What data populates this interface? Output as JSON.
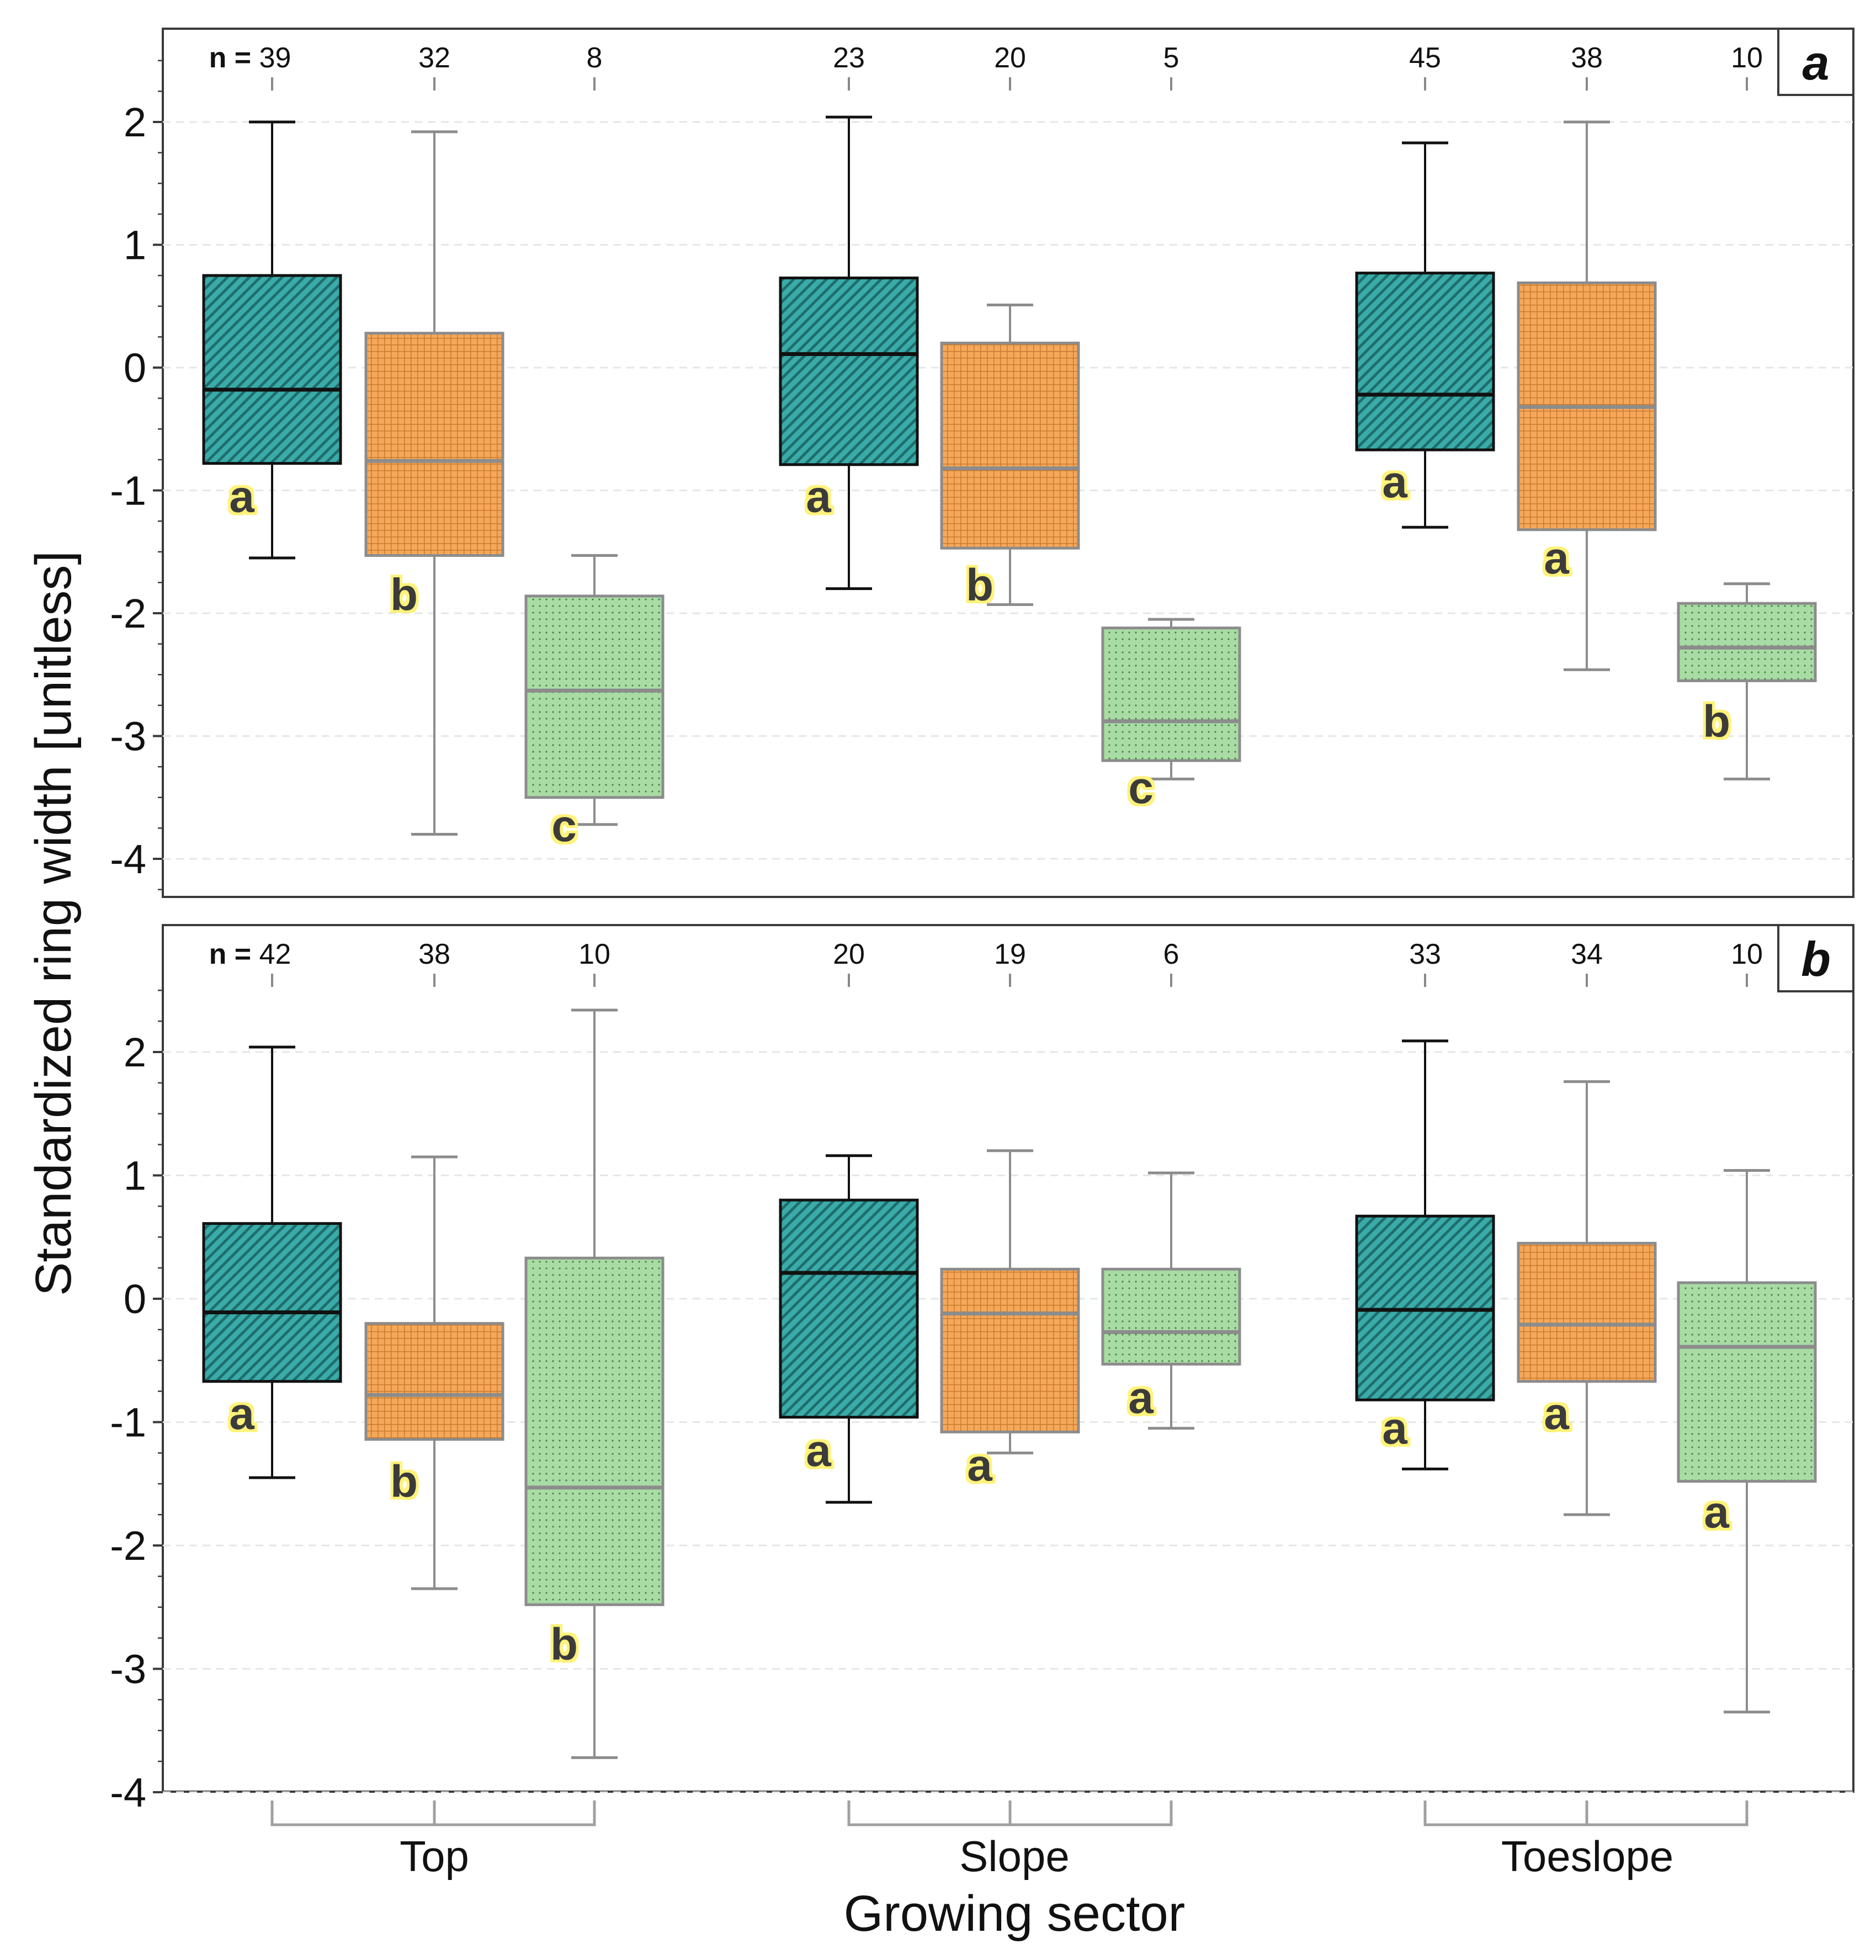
{
  "figure": {
    "ylabel": "Standardized ring width [unitless]",
    "xlabel": "Growing sector",
    "groups": [
      "Top",
      "Slope",
      "Toeslope"
    ],
    "colors": {
      "teal": "#3aaba8",
      "orange": "#f6a85a",
      "green": "#a8dca4",
      "dark_stroke": "#111111",
      "grey_stroke": "#8c8c8c",
      "letter_fill": "#3a3a3a",
      "letter_halo": "#fff27a"
    }
  },
  "chart_data": [
    {
      "type": "box",
      "panel_label": "a",
      "ylim": [
        -4.3,
        2.8
      ],
      "yticks": [
        "2",
        "1",
        "0",
        "-1",
        "-2",
        "-3",
        "-4"
      ],
      "n_prefix": "n =",
      "boxes": [
        {
          "group": "Top",
          "series": "teal",
          "n": "39",
          "whisker_low": -1.55,
          "q1": -0.78,
          "median": -0.18,
          "q3": 0.75,
          "whisker_high": 2.0,
          "letter": "a",
          "letter_y": -1.05
        },
        {
          "group": "Top",
          "series": "orange",
          "n": "32",
          "whisker_low": -3.8,
          "q1": -1.53,
          "median": -0.76,
          "q3": 0.28,
          "whisker_high": 1.92,
          "letter": "b",
          "letter_y": -1.85
        },
        {
          "group": "Top",
          "series": "green",
          "n": "8",
          "whisker_low": -3.72,
          "q1": -3.5,
          "median": -2.63,
          "q3": -1.86,
          "whisker_high": -1.53,
          "letter": "c",
          "letter_y": -3.73
        },
        {
          "group": "Slope",
          "series": "teal",
          "n": "23",
          "whisker_low": -1.8,
          "q1": -0.79,
          "median": 0.11,
          "q3": 0.73,
          "whisker_high": 2.04,
          "letter": "a",
          "letter_y": -1.05
        },
        {
          "group": "Slope",
          "series": "orange",
          "n": "20",
          "whisker_low": -1.93,
          "q1": -1.47,
          "median": -0.82,
          "q3": 0.2,
          "whisker_high": 0.51,
          "letter": "b",
          "letter_y": -1.77
        },
        {
          "group": "Slope",
          "series": "green",
          "n": "5",
          "whisker_low": -3.35,
          "q1": -3.2,
          "median": -2.88,
          "q3": -2.12,
          "whisker_high": -2.05,
          "letter": "c",
          "letter_y": -3.42
        },
        {
          "group": "Toeslope",
          "series": "teal",
          "n": "45",
          "whisker_low": -1.3,
          "q1": -0.67,
          "median": -0.22,
          "q3": 0.77,
          "whisker_high": 1.83,
          "letter": "a",
          "letter_y": -0.93
        },
        {
          "group": "Toeslope",
          "series": "orange",
          "n": "38",
          "whisker_low": -2.46,
          "q1": -1.32,
          "median": -0.32,
          "q3": 0.69,
          "whisker_high": 2.0,
          "letter": "a",
          "letter_y": -1.55
        },
        {
          "group": "Toeslope",
          "series": "green",
          "n": "10",
          "whisker_low": -3.35,
          "q1": -2.55,
          "median": -2.28,
          "q3": -1.92,
          "whisker_high": -1.76,
          "letter": "b",
          "letter_y": -2.88
        }
      ]
    },
    {
      "type": "box",
      "panel_label": "b",
      "ylim": [
        -4.0,
        3.1
      ],
      "yticks": [
        "2",
        "1",
        "0",
        "-1",
        "-2",
        "-3",
        "-4"
      ],
      "n_prefix": "n =",
      "boxes": [
        {
          "group": "Top",
          "series": "teal",
          "n": "42",
          "whisker_low": -1.45,
          "q1": -0.67,
          "median": -0.11,
          "q3": 0.61,
          "whisker_high": 2.04,
          "letter": "a",
          "letter_y": -0.93
        },
        {
          "group": "Top",
          "series": "orange",
          "n": "38",
          "whisker_low": -2.35,
          "q1": -1.14,
          "median": -0.78,
          "q3": -0.2,
          "whisker_high": 1.15,
          "letter": "b",
          "letter_y": -1.48
        },
        {
          "group": "Top",
          "series": "green",
          "n": "10",
          "whisker_low": -3.72,
          "q1": -2.48,
          "median": -1.53,
          "q3": 0.33,
          "whisker_high": 2.34,
          "letter": "b",
          "letter_y": -2.8
        },
        {
          "group": "Slope",
          "series": "teal",
          "n": "20",
          "whisker_low": -1.65,
          "q1": -0.96,
          "median": 0.21,
          "q3": 0.8,
          "whisker_high": 1.16,
          "letter": "a",
          "letter_y": -1.23
        },
        {
          "group": "Slope",
          "series": "orange",
          "n": "19",
          "whisker_low": -1.25,
          "q1": -1.08,
          "median": -0.12,
          "q3": 0.24,
          "whisker_high": 1.2,
          "letter": "a",
          "letter_y": -1.35
        },
        {
          "group": "Slope",
          "series": "green",
          "n": "6",
          "whisker_low": -1.05,
          "q1": -0.53,
          "median": -0.27,
          "q3": 0.24,
          "whisker_high": 1.02,
          "letter": "a",
          "letter_y": -0.8
        },
        {
          "group": "Toeslope",
          "series": "teal",
          "n": "33",
          "whisker_low": -1.38,
          "q1": -0.82,
          "median": -0.09,
          "q3": 0.67,
          "whisker_high": 2.09,
          "letter": "a",
          "letter_y": -1.05
        },
        {
          "group": "Toeslope",
          "series": "orange",
          "n": "34",
          "whisker_low": -1.75,
          "q1": -0.67,
          "median": -0.21,
          "q3": 0.45,
          "whisker_high": 1.76,
          "letter": "a",
          "letter_y": -0.93
        },
        {
          "group": "Toeslope",
          "series": "green",
          "n": "10",
          "whisker_low": -3.35,
          "q1": -1.48,
          "median": -0.39,
          "q3": 0.13,
          "whisker_high": 1.04,
          "letter": "a",
          "letter_y": -1.73
        }
      ]
    }
  ]
}
